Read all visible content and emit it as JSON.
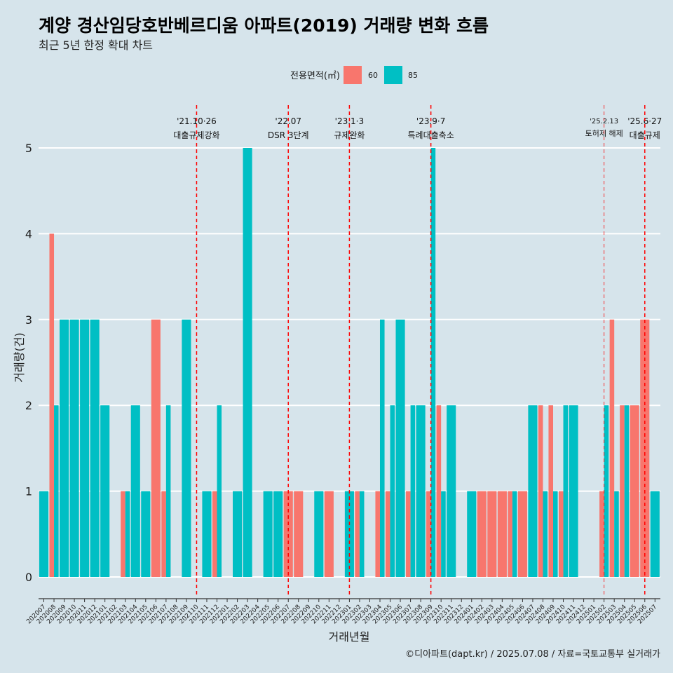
{
  "chart_data": {
    "type": "bar",
    "title": "계양 경산임당호반베르디움 아파트(2019) 거래량 변화 흐름",
    "subtitle": "최근 5년 한정 확대 차트",
    "xlabel": "거래년월",
    "ylabel": "거래량(건)",
    "legend_title": "전용면적(㎡)",
    "ylim": [
      0,
      5
    ],
    "yticks": [
      0,
      1,
      2,
      3,
      4,
      5
    ],
    "categories": [
      "202007",
      "202008",
      "202009",
      "202010",
      "202011",
      "202012",
      "202101",
      "202102",
      "202103",
      "202104",
      "202105",
      "202106",
      "202107",
      "202108",
      "202109",
      "202110",
      "202111",
      "202112",
      "202201",
      "202202",
      "202203",
      "202204",
      "202205",
      "202206",
      "202207",
      "202208",
      "202209",
      "202210",
      "202211",
      "202212",
      "202301",
      "202302",
      "202303",
      "202304",
      "202305",
      "202306",
      "202307",
      "202308",
      "202309",
      "202310",
      "202311",
      "202312",
      "202401",
      "202402",
      "202403",
      "202404",
      "202405",
      "202406",
      "202407",
      "202408",
      "202409",
      "202410",
      "202411",
      "202412",
      "202501",
      "202502",
      "202503",
      "202504",
      "202505",
      "202506",
      "202507"
    ],
    "series": [
      {
        "name": "60",
        "color": "#F8766D",
        "values": [
          0,
          4,
          0,
          0,
          0,
          0,
          0,
          0,
          1,
          0,
          0,
          3,
          1,
          0,
          0,
          0,
          0,
          1,
          0,
          0,
          0,
          0,
          0,
          0,
          1,
          1,
          0,
          0,
          1,
          0,
          0,
          1,
          0,
          1,
          1,
          0,
          1,
          0,
          1,
          2,
          0,
          0,
          0,
          1,
          1,
          1,
          1,
          1,
          0,
          2,
          2,
          1,
          0,
          0,
          0,
          1,
          3,
          2,
          2,
          3,
          0
        ]
      },
      {
        "name": "85",
        "color": "#00BFC4",
        "values": [
          1,
          2,
          3,
          3,
          3,
          3,
          2,
          0,
          1,
          2,
          1,
          0,
          2,
          0,
          3,
          0,
          1,
          2,
          0,
          1,
          5,
          0,
          1,
          1,
          0,
          0,
          0,
          1,
          0,
          0,
          1,
          1,
          0,
          3,
          2,
          3,
          2,
          2,
          5,
          1,
          2,
          0,
          1,
          0,
          0,
          0,
          1,
          0,
          2,
          1,
          1,
          2,
          2,
          0,
          0,
          2,
          1,
          2,
          0,
          0,
          1
        ]
      }
    ],
    "event_color": "#FF0000",
    "events": [
      {
        "at": "202110",
        "date": "'21.10·26",
        "label": "대출규제강화"
      },
      {
        "at": "202207",
        "date": "'22.07",
        "label": "DSR 3단계"
      },
      {
        "at": "202301",
        "date": "'23.1·3",
        "label": "규제완화"
      },
      {
        "at": "202309",
        "date": "'23.9·7",
        "label": "특례대출축소"
      },
      {
        "at": "202502",
        "date": "'25.2.13",
        "label": "토허제 해제",
        "minor": true
      },
      {
        "at": "202506",
        "date": "'25.6·27",
        "label": "대출규제"
      }
    ],
    "caption": "©디아파트(dapt.kr) / 2025.07.08 / 자료=국토교통부 실거래가"
  }
}
